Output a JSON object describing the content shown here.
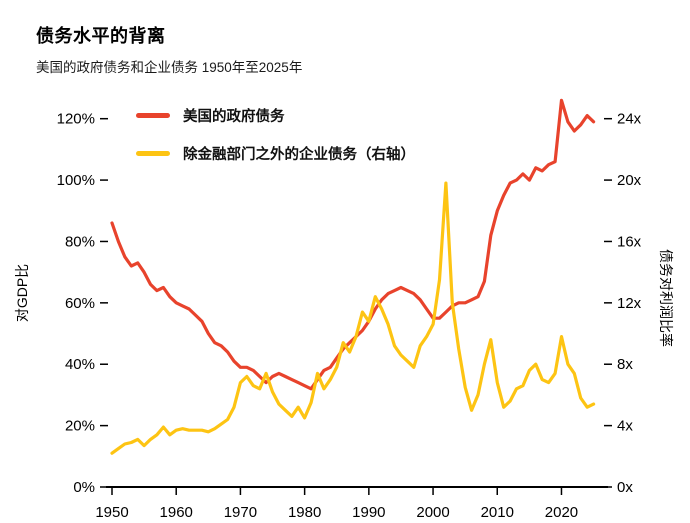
{
  "header": {
    "title": "债务水平的背离",
    "subtitle": "美国的政府债务和企业债务  1950年至2025年"
  },
  "chart_data": {
    "type": "line",
    "title": "债务水平的背离",
    "subtitle": "美国的政府债务和企业债务 1950年至2025年",
    "grid": false,
    "legend_position": "top-left",
    "x": [
      1950,
      1951,
      1952,
      1953,
      1954,
      1955,
      1956,
      1957,
      1958,
      1959,
      1960,
      1961,
      1962,
      1963,
      1964,
      1965,
      1966,
      1967,
      1968,
      1969,
      1970,
      1971,
      1972,
      1973,
      1974,
      1975,
      1976,
      1977,
      1978,
      1979,
      1980,
      1981,
      1982,
      1983,
      1984,
      1985,
      1986,
      1987,
      1988,
      1989,
      1990,
      1991,
      1992,
      1993,
      1994,
      1995,
      1996,
      1997,
      1998,
      1999,
      2000,
      2001,
      2002,
      2003,
      2004,
      2005,
      2006,
      2007,
      2008,
      2009,
      2010,
      2011,
      2012,
      2013,
      2014,
      2015,
      2016,
      2017,
      2018,
      2019,
      2020,
      2021,
      2022,
      2023,
      2024,
      2025
    ],
    "series": [
      {
        "name": "美国的政府债务",
        "axis": "left",
        "unit": "% of GDP",
        "color": "#E8432C",
        "data_name": "government-debt-line",
        "values": [
          86,
          80,
          75,
          72,
          73,
          70,
          66,
          64,
          65,
          62,
          60,
          59,
          58,
          56,
          54,
          50,
          47,
          46,
          44,
          41,
          39,
          39,
          38,
          36,
          34,
          36,
          37,
          36,
          35,
          34,
          33,
          32,
          35,
          38,
          39,
          42,
          45,
          47,
          49,
          51,
          54,
          58,
          61,
          63,
          64,
          65,
          64,
          63,
          61,
          58,
          55,
          55,
          57,
          59,
          60,
          60,
          61,
          62,
          67,
          82,
          90,
          95,
          99,
          100,
          102,
          100,
          104,
          103,
          105,
          106,
          126,
          119,
          116,
          118,
          121,
          119
        ]
      },
      {
        "name": "除金融部门之外的企业债务（右轴）",
        "axis": "right",
        "unit": "debt-to-profit ratio (x)",
        "color": "#FDC413",
        "data_name": "corporate-debt-line",
        "values": [
          2.2,
          2.5,
          2.8,
          2.9,
          3.1,
          2.7,
          3.1,
          3.4,
          3.9,
          3.4,
          3.7,
          3.8,
          3.7,
          3.7,
          3.7,
          3.6,
          3.8,
          4.1,
          4.4,
          5.2,
          6.8,
          7.2,
          6.6,
          6.4,
          7.4,
          6.2,
          5.4,
          5.0,
          4.6,
          5.2,
          4.5,
          5.5,
          7.4,
          6.4,
          7.0,
          7.8,
          9.4,
          8.8,
          9.8,
          11.4,
          10.8,
          12.4,
          11.6,
          10.6,
          9.2,
          8.6,
          8.2,
          7.8,
          9.2,
          9.8,
          10.6,
          13.5,
          19.8,
          12.0,
          9.0,
          6.5,
          5.0,
          6.0,
          8.0,
          9.6,
          6.8,
          5.2,
          5.6,
          6.4,
          6.6,
          7.6,
          8.0,
          7.0,
          6.8,
          7.4,
          9.8,
          8.0,
          7.4,
          5.8,
          5.2,
          5.4
        ]
      }
    ],
    "left_axis": {
      "label": "对GDP比",
      "ticks": [
        0,
        20,
        40,
        60,
        80,
        100,
        120
      ],
      "tick_labels": [
        "0%",
        "20%",
        "40%",
        "60%",
        "80%",
        "100%",
        "120%"
      ],
      "max": 130
    },
    "right_axis": {
      "label": "债务对利润比率",
      "ticks": [
        0,
        4,
        8,
        12,
        16,
        20,
        24
      ],
      "tick_labels": [
        "0x",
        "4x",
        "8x",
        "12x",
        "16x",
        "20x",
        "24x"
      ],
      "max": 26
    },
    "x_axis": {
      "range": [
        1950,
        2026
      ],
      "ticks": [
        1950,
        1960,
        1970,
        1980,
        1990,
        2000,
        2010,
        2020
      ],
      "tick_labels": [
        "1950",
        "1960",
        "1970",
        "1980",
        "1990",
        "2000",
        "2010",
        "2020"
      ]
    }
  }
}
